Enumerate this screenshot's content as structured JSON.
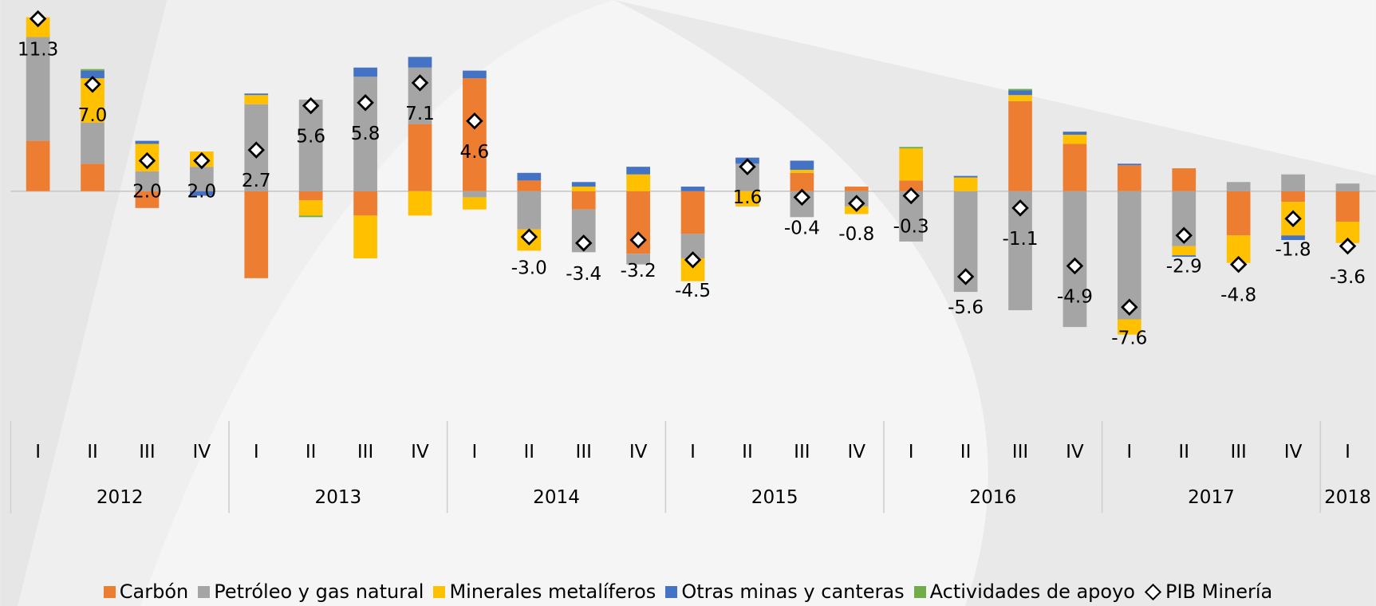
{
  "chart_data": {
    "type": "bar",
    "categories": [
      "I",
      "II",
      "III",
      "IV",
      "I",
      "II",
      "III",
      "IV",
      "I",
      "II",
      "III",
      "IV",
      "I",
      "II",
      "III",
      "IV",
      "I",
      "II",
      "III",
      "IV",
      "I",
      "II",
      "III",
      "IV",
      "I"
    ],
    "groups": [
      "2012",
      "2013",
      "2014",
      "2015",
      "2016",
      "2017",
      "2018"
    ],
    "series": [
      {
        "name": "Carbón",
        "color": "#ed7d31",
        "values": [
          3.3,
          1.8,
          -1.1,
          0,
          -5.7,
          -0.6,
          -1.6,
          4.4,
          7.4,
          0.7,
          -1.2,
          -4.1,
          -2.8,
          0,
          1.2,
          0.3,
          0.7,
          0,
          5.9,
          3.1,
          1.7,
          1.5,
          -2.9,
          -0.7,
          -2.0
        ]
      },
      {
        "name": "Petróleo y gas natural",
        "color": "#a5a5a5",
        "values": [
          6.8,
          2.7,
          1.3,
          1.6,
          5.7,
          6.0,
          7.5,
          3.7,
          -0.4,
          -2.5,
          -2.8,
          -0.7,
          -1.6,
          1.8,
          -1.7,
          -1.0,
          -3.3,
          -6.6,
          -7.8,
          -8.9,
          -8.4,
          -3.6,
          0.6,
          1.1,
          0.5
        ]
      },
      {
        "name": "Minerales metalíferos",
        "color": "#ffc000",
        "values": [
          1.3,
          2.9,
          1.8,
          1.0,
          0.6,
          -1.0,
          -2.8,
          -1.6,
          -0.8,
          -1.4,
          0.3,
          1.1,
          -1.5,
          -1.0,
          0.2,
          -0.5,
          2.1,
          0.9,
          0.4,
          0.6,
          -1.0,
          -0.6,
          -1.8,
          -2.2,
          -1.4
        ]
      },
      {
        "name": "Otras minas y canteras",
        "color": "#4472c4",
        "values": [
          0,
          0.5,
          0.2,
          -0.3,
          0.1,
          0,
          0.6,
          0.7,
          0.5,
          0.5,
          0.3,
          0.5,
          0.3,
          0.4,
          0.6,
          0,
          0,
          0.1,
          0.3,
          0.2,
          0.1,
          -0.1,
          0,
          -0.3,
          0
        ]
      },
      {
        "name": "Actividades de apoyo",
        "color": "#70ad47",
        "values": [
          0,
          0.1,
          0,
          0,
          0,
          -0.1,
          0,
          0,
          0,
          0,
          0,
          0,
          0,
          0,
          0,
          0,
          0.1,
          0,
          0.1,
          0,
          0,
          0,
          0,
          0,
          0
        ]
      }
    ],
    "markers": {
      "name": "PIB Minería",
      "values": [
        11.3,
        7.0,
        2.0,
        2.0,
        2.7,
        5.6,
        5.8,
        7.1,
        4.6,
        -3.0,
        -3.4,
        -3.2,
        -4.5,
        1.6,
        -0.4,
        -0.8,
        -0.3,
        -5.6,
        -1.1,
        -4.9,
        -7.6,
        -2.9,
        -4.8,
        -1.8,
        -3.6
      ],
      "value_labels": [
        "11.3",
        "7.0",
        "2.0",
        "2.0",
        "2.7",
        "5.6",
        "5.8",
        "7.1",
        "4.6",
        "-3.0",
        "-3.4",
        "-3.2",
        "-4.5",
        "1.6",
        "-0.4",
        "-0.8",
        "-0.3",
        "-5.6",
        "-1.1",
        "-4.9",
        "-7.6",
        "-2.9",
        "-4.8",
        "-1.8",
        "-3.6"
      ]
    }
  }
}
